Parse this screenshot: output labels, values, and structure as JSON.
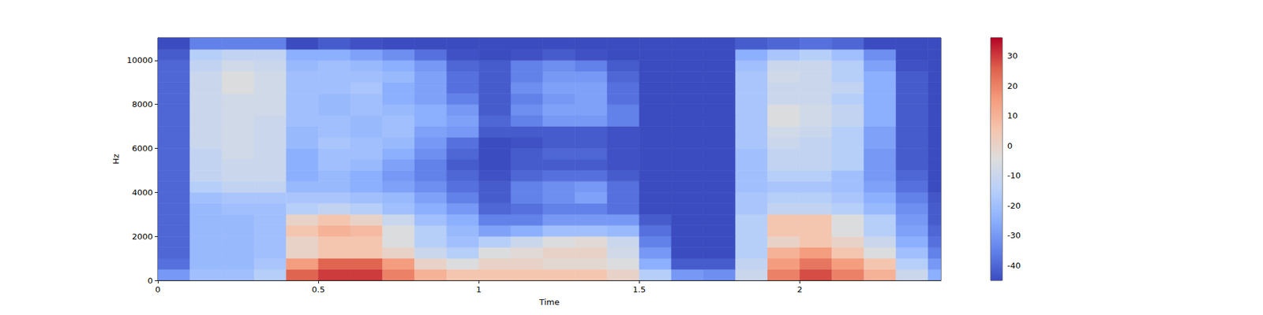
{
  "chart_data": {
    "type": "heatmap",
    "x_label": "Time",
    "y_label": "Hz",
    "xlim": [
      0,
      2.44
    ],
    "ylim": [
      0,
      11025
    ],
    "xticks": [
      0,
      0.5,
      1,
      1.5,
      2
    ],
    "yticks": [
      0,
      2000,
      4000,
      6000,
      8000,
      10000
    ],
    "time_edges": [
      0,
      0.1,
      0.2,
      0.3,
      0.4,
      0.5,
      0.6,
      0.7,
      0.8,
      0.9,
      1.0,
      1.1,
      1.2,
      1.3,
      1.4,
      1.5,
      1.6,
      1.7,
      1.8,
      1.9,
      2.0,
      2.1,
      2.2,
      2.3,
      2.4,
      2.44
    ],
    "freq_edges": [
      0,
      500,
      1000,
      1500,
      2000,
      2500,
      3000,
      3500,
      4000,
      4500,
      5000,
      5500,
      6000,
      6500,
      7000,
      7500,
      8000,
      8500,
      9000,
      9500,
      10000,
      10500,
      11025
    ],
    "cells": [
      [
        -30,
        -20,
        -20,
        -15,
        25,
        30,
        30,
        20,
        10,
        5,
        5,
        5,
        5,
        5,
        0,
        -15,
        -30,
        -32,
        -10,
        20,
        28,
        20,
        10,
        -10,
        -25
      ],
      [
        -38,
        -22,
        -22,
        -18,
        15,
        25,
        25,
        15,
        0,
        -5,
        0,
        0,
        -2,
        -2,
        -5,
        -25,
        -42,
        -42,
        -12,
        15,
        22,
        15,
        5,
        -15,
        -30
      ],
      [
        -40,
        -22,
        -22,
        -20,
        0,
        5,
        5,
        0,
        -10,
        -15,
        -5,
        -3,
        0,
        0,
        -8,
        -30,
        -45,
        -45,
        -15,
        10,
        15,
        5,
        -5,
        -20,
        -35
      ],
      [
        -40,
        -22,
        -22,
        -20,
        0,
        5,
        5,
        -5,
        -15,
        -20,
        -15,
        -10,
        -5,
        -3,
        -10,
        -35,
        -45,
        -45,
        -15,
        0,
        5,
        0,
        -10,
        -25,
        -38
      ],
      [
        -40,
        -22,
        -22,
        -20,
        5,
        10,
        8,
        -5,
        -15,
        -22,
        -28,
        -25,
        -20,
        -20,
        -22,
        -38,
        -45,
        -45,
        -15,
        5,
        5,
        -5,
        -15,
        -28,
        -40
      ],
      [
        -40,
        -22,
        -22,
        -20,
        0,
        5,
        0,
        -10,
        -20,
        -25,
        -35,
        -35,
        -30,
        -30,
        -30,
        -42,
        -45,
        -45,
        -15,
        5,
        5,
        -5,
        -15,
        -30,
        -42
      ],
      [
        -40,
        -22,
        -20,
        -20,
        -15,
        -12,
        -15,
        -20,
        -25,
        -30,
        -40,
        -38,
        -35,
        -35,
        -38,
        -45,
        -45,
        -45,
        -18,
        -12,
        -12,
        -15,
        -22,
        -32,
        -42
      ],
      [
        -40,
        -20,
        -18,
        -18,
        -18,
        -18,
        -20,
        -22,
        -28,
        -35,
        -42,
        -35,
        -32,
        -28,
        -38,
        -45,
        -45,
        -45,
        -18,
        -15,
        -15,
        -18,
        -25,
        -35,
        -43
      ],
      [
        -40,
        -15,
        -12,
        -12,
        -22,
        -22,
        -25,
        -28,
        -32,
        -38,
        -42,
        -35,
        -32,
        -30,
        -38,
        -45,
        -45,
        -45,
        -20,
        -18,
        -18,
        -20,
        -28,
        -38,
        -45
      ],
      [
        -40,
        -12,
        -10,
        -10,
        -25,
        -22,
        -25,
        -30,
        -35,
        -40,
        -44,
        -40,
        -38,
        -38,
        -42,
        -45,
        -45,
        -45,
        -20,
        -15,
        -15,
        -20,
        -30,
        -40,
        -45
      ],
      [
        -40,
        -12,
        -10,
        -10,
        -25,
        -20,
        -22,
        -28,
        -35,
        -42,
        -45,
        -42,
        -42,
        -42,
        -44,
        -45,
        -45,
        -45,
        -20,
        -12,
        -12,
        -15,
        -30,
        -42,
        -45
      ],
      [
        -40,
        -12,
        -8,
        -10,
        -25,
        -20,
        -20,
        -25,
        -32,
        -40,
        -45,
        -42,
        -40,
        -40,
        -44,
        -45,
        -45,
        -45,
        -20,
        -12,
        -12,
        -15,
        -30,
        -42,
        -45
      ],
      [
        -40,
        -10,
        -8,
        -10,
        -22,
        -18,
        -20,
        -22,
        -30,
        -38,
        -45,
        -44,
        -42,
        -42,
        -44,
        -45,
        -45,
        -45,
        -18,
        -10,
        -12,
        -15,
        -28,
        -42,
        -45
      ],
      [
        -40,
        -10,
        -8,
        -10,
        -22,
        -20,
        -22,
        -20,
        -28,
        -30,
        -42,
        -42,
        -42,
        -42,
        -44,
        -45,
        -45,
        -45,
        -18,
        -8,
        -10,
        -15,
        -28,
        -42,
        -45
      ],
      [
        -40,
        -10,
        -8,
        -10,
        -20,
        -20,
        -22,
        -20,
        -25,
        -28,
        -40,
        -35,
        -30,
        -30,
        -35,
        -45,
        -45,
        -45,
        -18,
        -5,
        -8,
        -12,
        -25,
        -42,
        -45
      ],
      [
        -40,
        -10,
        -8,
        -8,
        -20,
        -22,
        -20,
        -22,
        -25,
        -30,
        -42,
        -32,
        -28,
        -28,
        -35,
        -45,
        -45,
        -45,
        -18,
        -5,
        -8,
        -12,
        -25,
        -42,
        -45
      ],
      [
        -40,
        -10,
        -8,
        -8,
        -20,
        -22,
        -20,
        -25,
        -28,
        -35,
        -42,
        -35,
        -30,
        -28,
        -38,
        -45,
        -45,
        -45,
        -18,
        -10,
        -10,
        -15,
        -25,
        -42,
        -45
      ],
      [
        -40,
        -10,
        -5,
        -8,
        -20,
        -20,
        -18,
        -25,
        -28,
        -38,
        -42,
        -32,
        -28,
        -28,
        -38,
        -45,
        -45,
        -45,
        -18,
        -10,
        -10,
        -12,
        -25,
        -42,
        -45
      ],
      [
        -40,
        -10,
        -5,
        -8,
        -20,
        -20,
        -20,
        -22,
        -28,
        -38,
        -42,
        -35,
        -30,
        -30,
        -40,
        -45,
        -45,
        -45,
        -18,
        -8,
        -10,
        -15,
        -25,
        -42,
        -45
      ],
      [
        -40,
        -12,
        -8,
        -10,
        -22,
        -20,
        -22,
        -25,
        -30,
        -40,
        -42,
        -35,
        -32,
        -35,
        -42,
        -45,
        -45,
        -45,
        -20,
        -10,
        -10,
        -15,
        -28,
        -44,
        -45
      ],
      [
        -42,
        -15,
        -12,
        -12,
        -25,
        -25,
        -28,
        -32,
        -38,
        -44,
        -45,
        -44,
        -42,
        -44,
        -45,
        -45,
        -45,
        -45,
        -25,
        -18,
        -15,
        -20,
        -32,
        -45,
        -45
      ],
      [
        -45,
        -35,
        -35,
        -35,
        -45,
        -42,
        -44,
        -45,
        -45,
        -45,
        -45,
        -45,
        -45,
        -45,
        -45,
        -45,
        -45,
        -45,
        -42,
        -40,
        -38,
        -40,
        -45,
        -45,
        -45
      ]
    ],
    "colorbar_range": [
      -45,
      36
    ],
    "colorbar_ticks": [
      -40,
      -30,
      -20,
      -10,
      0,
      10,
      20,
      30
    ]
  }
}
